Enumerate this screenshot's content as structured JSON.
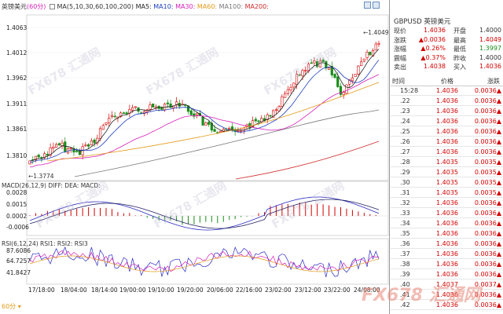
{
  "chart": {
    "symbol": "英镑美元",
    "period": "(60分)",
    "ma_label": "MA(5,10,30,60,100,200)",
    "ma_items": [
      {
        "label": "MA5:",
        "color": "#222222"
      },
      {
        "label": "MA10:",
        "color": "#1f3fbf"
      },
      {
        "label": "MA30:",
        "color": "#d61fb8"
      },
      {
        "label": "MA60:",
        "color": "#e39a16"
      },
      {
        "label": "MA100:",
        "color": "#777777"
      },
      {
        "label": "MA200:",
        "color": "#cf2a2a"
      }
    ],
    "price_ticks": [
      "1.4063",
      "1.4012",
      "1.3962",
      "1.3911",
      "1.3861",
      "1.3810"
    ],
    "high_label": "1.4049",
    "low_label": "1.3774",
    "macd_label": "MACD(26,12,9) DIFF: DEA: MACD:",
    "macd_ticks": [
      "0.0028",
      "0.0015",
      "0.0002",
      "-0.0006"
    ],
    "rsi_label": "RSI(6,12,24) RSI1: RSI2: RSI3",
    "rsi_ticks": [
      "87.6086",
      "64.7257",
      "41.8427"
    ],
    "x_ticks": [
      "17/18:00",
      "18/04:00",
      "18/14:00",
      "19/00:00",
      "19/10:00",
      "19/20:00",
      "20/06:00",
      "22/16:00",
      "23/02:00",
      "23/12:00",
      "23/22:00",
      "24/08:00"
    ],
    "period_button": "60分",
    "watermark": "FX678 汇通网"
  },
  "quote": {
    "title": "GBPUSD 英镑美元",
    "rows": [
      {
        "k1": "现价",
        "v1": "1.4036",
        "k2": "开盘",
        "v2": "1.4000"
      },
      {
        "k1": "涨跌",
        "v1": "▲0.0036",
        "k2": "最高",
        "v2": "1.4049"
      },
      {
        "k1": "涨幅",
        "v1": "▲0.26%",
        "k2": "最低",
        "v2": "1.3997"
      },
      {
        "k1": "震幅",
        "v1": "▲0.37%",
        "k2": "昨收",
        "v2": "1.4000"
      },
      {
        "k1": "卖出",
        "v1": "1.4038",
        "k2": "买入",
        "v2": "1.4036"
      }
    ],
    "trade_headers": [
      "时间",
      "价格",
      "涨跌"
    ],
    "trades": [
      {
        "t": "15:28",
        "p": "1.4036",
        "c": "0.0036▲"
      },
      {
        "t": ".22",
        "p": "1.4036",
        "c": "0.0036▲"
      },
      {
        "t": ".23",
        "p": "1.4036",
        "c": "0.0036▲"
      },
      {
        "t": ".24",
        "p": "1.4036",
        "c": "0.0036▲"
      },
      {
        "t": ".25",
        "p": "1.4036",
        "c": "0.0036▲"
      },
      {
        "t": ".26",
        "p": "1.4036",
        "c": "0.0036▲"
      },
      {
        "t": ".27",
        "p": "1.4036",
        "c": "0.0036▲"
      },
      {
        "t": ".28",
        "p": "1.4035",
        "c": "0.0035▲"
      },
      {
        "t": ".29",
        "p": "1.4035",
        "c": "0.0035▲"
      },
      {
        "t": ".30",
        "p": "1.4035",
        "c": "0.0035▲"
      },
      {
        "t": ".31",
        "p": "1.4035",
        "c": "0.0035▲"
      },
      {
        "t": ".32",
        "p": "1.4036",
        "c": "0.0036▲"
      },
      {
        "t": ".33",
        "p": "1.4036",
        "c": "0.0036▲"
      },
      {
        "t": ".34",
        "p": "1.4036",
        "c": "0.0036▲"
      },
      {
        "t": ".35",
        "p": "1.4036",
        "c": "0.0036▲"
      },
      {
        "t": ".36",
        "p": "1.4036",
        "c": "0.0036▲"
      },
      {
        "t": ".37",
        "p": "1.4036",
        "c": "0.0036▲"
      },
      {
        "t": ".38",
        "p": "1.4036",
        "c": "0.0036▲"
      },
      {
        "t": ".39",
        "p": "1.4036",
        "c": "0.0036▲"
      },
      {
        "t": ".40",
        "p": "1.4037",
        "c": "0.0037▲"
      },
      {
        "t": ".41",
        "p": "1.4036",
        "c": "0.0036▲"
      },
      {
        "t": ".42",
        "p": "1.4036",
        "c": "0.0036▲"
      }
    ]
  },
  "colors": {
    "up": "#d40000",
    "down": "#1a8d1a",
    "ma5": "#222222",
    "ma10": "#1f3fbf",
    "ma30": "#d61fb8",
    "ma60": "#e39a16",
    "ma100": "#777777",
    "ma200": "#cf2a2a",
    "dea": "#222266",
    "diff": "#2a2ac0"
  }
}
